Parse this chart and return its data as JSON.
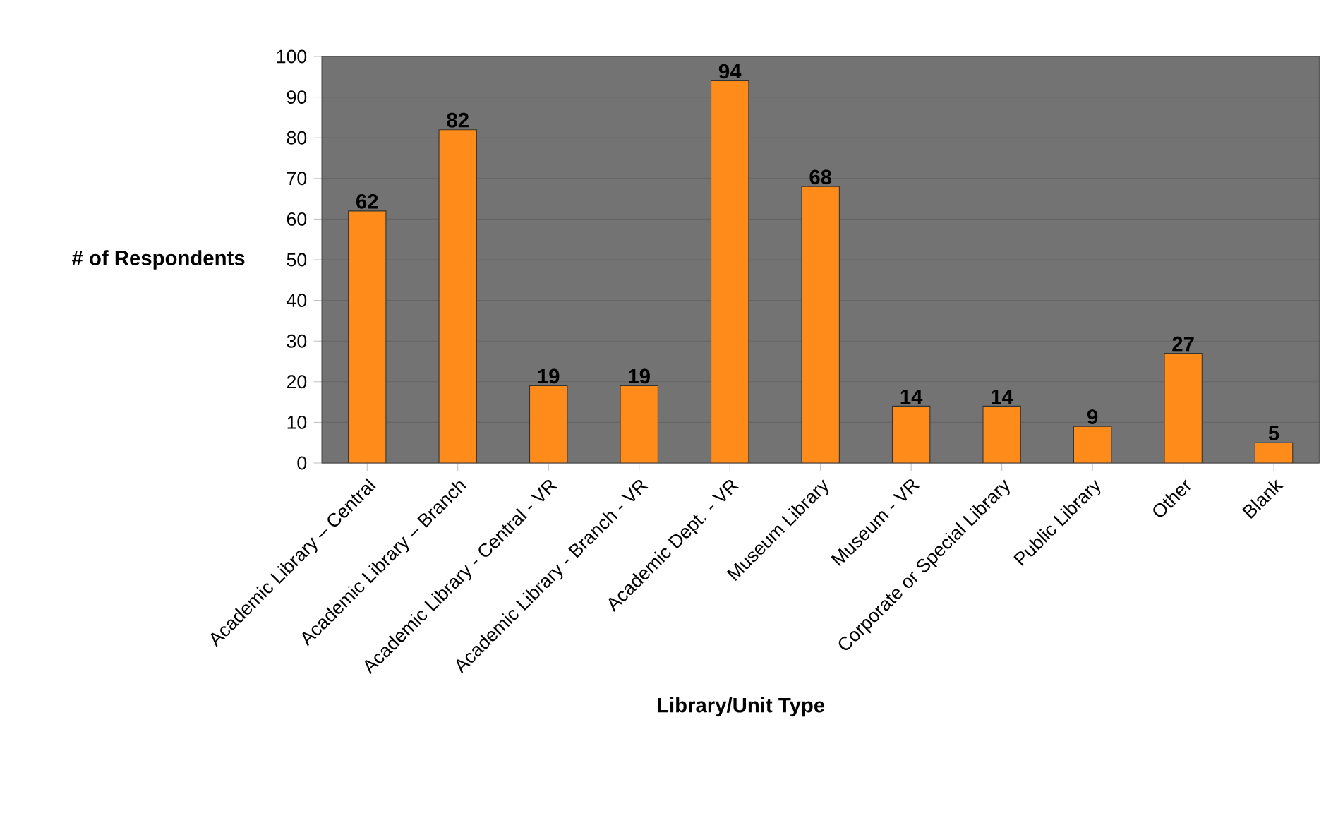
{
  "chart_data": {
    "type": "bar",
    "xlabel": "Library/Unit Type",
    "ylabel": "# of Respondents",
    "categories": [
      "Academic Library – Central",
      "Academic Library – Branch",
      "Academic Library - Central - VR",
      "Academic Library - Branch - VR",
      "Academic Dept. - VR",
      "Museum Library",
      "Museum - VR",
      "Corporate or Special Library",
      "Public Library",
      "Other",
      "Blank"
    ],
    "values": [
      62,
      82,
      19,
      19,
      94,
      68,
      14,
      14,
      9,
      27,
      5
    ],
    "color": "#ff8c1a",
    "ylim": [
      0,
      100
    ],
    "yticks": [
      0,
      10,
      20,
      30,
      40,
      50,
      60,
      70,
      80,
      90,
      100
    ],
    "grid": "y",
    "data_labels": true
  }
}
